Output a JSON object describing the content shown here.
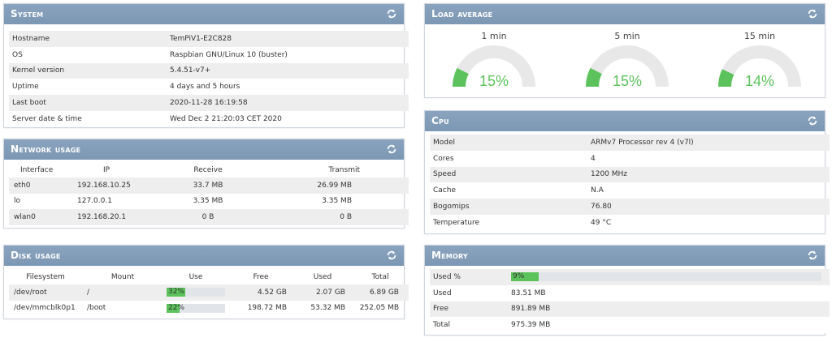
{
  "system": {
    "title": "System",
    "rows": [
      {
        "label": "Hostname",
        "value": "TemPiV1-E2C828"
      },
      {
        "label": "OS",
        "value": "Raspbian GNU/Linux 10 (buster)"
      },
      {
        "label": "Kernel version",
        "value": "5.4.51-v7+"
      },
      {
        "label": "Uptime",
        "value": "4 days and 5 hours"
      },
      {
        "label": "Last boot",
        "value": "2020-11-28 16:19:58"
      },
      {
        "label": "Server date & time",
        "value": "Wed Dec 2 21:20:03 CET 2020"
      }
    ]
  },
  "network": {
    "title": "Network usage",
    "headers": [
      "Interface",
      "IP",
      "Receive",
      "Transmit"
    ],
    "rows": [
      [
        "eth0",
        "192.168.10.25",
        "33.7 MB",
        "26.99 MB"
      ],
      [
        "lo",
        "127.0.0.1",
        "3.35 MB",
        "3.35 MB"
      ],
      [
        "wlan0",
        "192.168.20.1",
        "0 B",
        "0 B"
      ]
    ]
  },
  "disk": {
    "title": "Disk usage",
    "headers": [
      "Filesystem",
      "Mount",
      "Use",
      "Free",
      "Used",
      "Total"
    ],
    "rows": [
      {
        "filesystem": "/dev/root",
        "mount": "/",
        "use_label": "32%",
        "use_pct": 32,
        "free": "4.52 GB",
        "used": "2.07 GB",
        "total": "6.89 GB"
      },
      {
        "filesystem": "/dev/mmcblk0p1",
        "mount": "/boot",
        "use_label": "22%",
        "use_pct": 22,
        "free": "198.72 MB",
        "used": "53.32 MB",
        "total": "252.05 MB"
      }
    ]
  },
  "load": {
    "title": "Load average",
    "gauges": [
      {
        "label": "1 min",
        "value": "15%",
        "pct": 15
      },
      {
        "label": "5 min",
        "value": "15%",
        "pct": 15
      },
      {
        "label": "15 min",
        "value": "14%",
        "pct": 14
      }
    ]
  },
  "cpu": {
    "title": "Cpu",
    "rows": [
      {
        "label": "Model",
        "value": "ARMv7 Processor rev 4 (v7l)"
      },
      {
        "label": "Cores",
        "value": "4"
      },
      {
        "label": "Speed",
        "value": "1200 MHz"
      },
      {
        "label": "Cache",
        "value": "N.A"
      },
      {
        "label": "Bogomips",
        "value": "76.80"
      },
      {
        "label": "Temperature",
        "value": "49 °C"
      }
    ]
  },
  "memory": {
    "title": "Memory",
    "used_pct_label": "Used %",
    "used_pct_value": "9%",
    "used_pct": 9,
    "rows": [
      {
        "label": "Used",
        "value": "83.51 MB"
      },
      {
        "label": "Free",
        "value": "891.89 MB"
      },
      {
        "label": "Total",
        "value": "975.39 MB"
      }
    ]
  },
  "colors": {
    "header": "#7c97b3",
    "accent": "#5cc35c",
    "track": "#e8e8e8"
  },
  "icons": {
    "refresh": "refresh-icon"
  }
}
